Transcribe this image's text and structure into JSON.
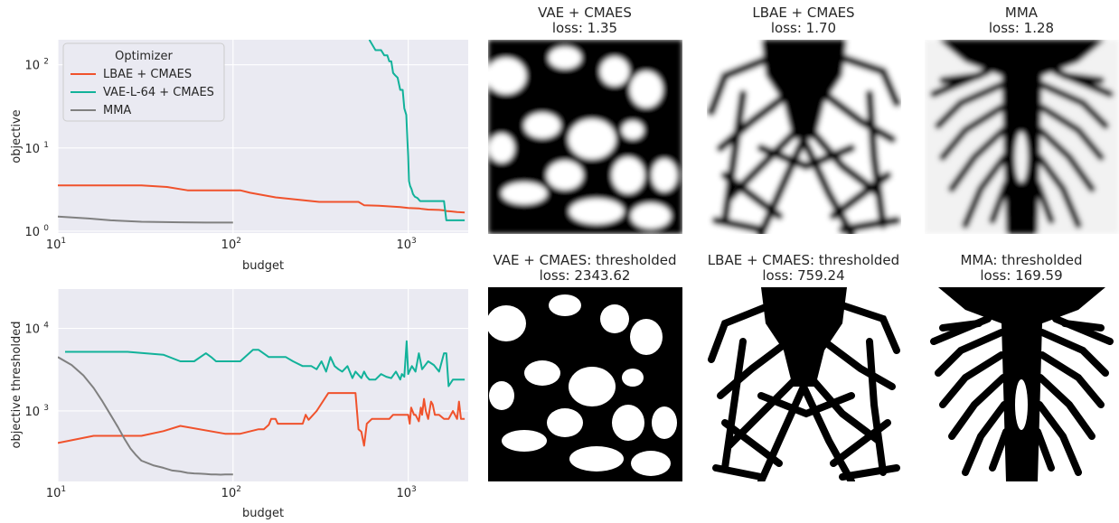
{
  "colors": {
    "lbae": "#f0522c",
    "vae": "#12b29a",
    "mma": "#808080",
    "plot_bg": "#eaeaf2"
  },
  "chart_data": [
    {
      "type": "line",
      "id": "top",
      "xscale": "log",
      "yscale": "log",
      "xlabel": "budget",
      "ylabel": "objective",
      "xlim": [
        10,
        2200
      ],
      "ylim": [
        0.95,
        200
      ],
      "grid": true,
      "x_ticks": [
        {
          "value": 10,
          "base": "10",
          "exp": "1"
        },
        {
          "value": 100,
          "base": "10",
          "exp": "2"
        },
        {
          "value": 1000,
          "base": "10",
          "exp": "3"
        }
      ],
      "y_ticks": [
        {
          "value": 1,
          "base": "10",
          "exp": "0"
        },
        {
          "value": 10,
          "base": "10",
          "exp": "1"
        },
        {
          "value": 100,
          "base": "10",
          "exp": "2"
        }
      ],
      "legend": {
        "title": "Optimizer",
        "placement": "upper-left",
        "entries": [
          {
            "label": "LBAE + CMAES",
            "color_key": "lbae"
          },
          {
            "label": "VAE-L-64 + CMAES",
            "color_key": "vae"
          },
          {
            "label": "MMA",
            "color_key": "mma"
          }
        ]
      },
      "series": [
        {
          "name": "LBAE + CMAES",
          "color_key": "lbae",
          "x": [
            10,
            30,
            42,
            55,
            110,
            125,
            175,
            310,
            520,
            560,
            680,
            900,
            1000,
            1150,
            1200,
            1300,
            1500,
            1600,
            1650,
            1750,
            1900,
            2100
          ],
          "y": [
            3.55,
            3.55,
            3.4,
            3.1,
            3.1,
            2.9,
            2.55,
            2.25,
            2.25,
            2.05,
            2.02,
            1.95,
            1.9,
            1.88,
            1.85,
            1.82,
            1.8,
            1.78,
            1.75,
            1.73,
            1.7,
            1.68
          ]
        },
        {
          "name": "VAE-L-64 + CMAES",
          "color_key": "vae",
          "x": [
            600,
            650,
            700,
            730,
            760,
            780,
            800,
            820,
            840,
            870,
            900,
            930,
            950,
            975,
            990,
            1000,
            1010,
            1025,
            1045,
            1065,
            1090,
            1130,
            1170,
            1300,
            1450,
            1600,
            1650,
            1800,
            2100
          ],
          "y": [
            200,
            150,
            150,
            130,
            130,
            110,
            110,
            80,
            75,
            70,
            50,
            50,
            30,
            25,
            12,
            8,
            4,
            3.5,
            3.2,
            2.8,
            2.6,
            2.5,
            2.3,
            2.3,
            2.3,
            2.3,
            1.35,
            1.35,
            1.35
          ]
        },
        {
          "name": "MMA",
          "color_key": "mma",
          "x": [
            10,
            15,
            20,
            30,
            50,
            70,
            100
          ],
          "y": [
            1.5,
            1.42,
            1.35,
            1.3,
            1.28,
            1.27,
            1.27
          ]
        }
      ]
    },
    {
      "type": "line",
      "id": "bottom",
      "xscale": "log",
      "yscale": "log",
      "xlabel": "budget",
      "ylabel": "objective thresholded",
      "xlim": [
        10,
        2200
      ],
      "ylim": [
        140,
        30000
      ],
      "grid": true,
      "x_ticks": [
        {
          "value": 10,
          "base": "10",
          "exp": "1"
        },
        {
          "value": 100,
          "base": "10",
          "exp": "2"
        },
        {
          "value": 1000,
          "base": "10",
          "exp": "3"
        }
      ],
      "y_ticks": [
        {
          "value": 1000,
          "base": "10",
          "exp": "3"
        },
        {
          "value": 10000,
          "base": "10",
          "exp": "4"
        }
      ],
      "series": [
        {
          "name": "LBAE + CMAES",
          "color_key": "lbae",
          "x": [
            10,
            16,
            30,
            40,
            50,
            90,
            110,
            140,
            150,
            160,
            165,
            175,
            180,
            250,
            260,
            270,
            300,
            350,
            400,
            450,
            500,
            520,
            540,
            560,
            580,
            620,
            700,
            780,
            820,
            840,
            860,
            900,
            960,
            1000,
            1020,
            1040,
            1080,
            1100,
            1150,
            1180,
            1200,
            1230,
            1260,
            1300,
            1350,
            1380,
            1420,
            1450,
            1500,
            1600,
            1700,
            1800,
            1900,
            1950,
            2000,
            2100
          ],
          "y": [
            410,
            500,
            500,
            570,
            660,
            530,
            530,
            600,
            600,
            680,
            800,
            800,
            700,
            700,
            900,
            780,
            1000,
            1650,
            1650,
            1650,
            1650,
            600,
            560,
            380,
            700,
            800,
            800,
            800,
            900,
            900,
            900,
            900,
            900,
            900,
            700,
            1100,
            900,
            900,
            750,
            1100,
            900,
            1400,
            1000,
            800,
            1300,
            1200,
            900,
            900,
            900,
            800,
            800,
            1000,
            800,
            1300,
            800,
            800
          ]
        },
        {
          "name": "VAE-L-64 + CMAES",
          "color_key": "vae",
          "x": [
            11,
            25,
            40,
            50,
            60,
            70,
            75,
            80,
            90,
            100,
            110,
            130,
            140,
            160,
            200,
            220,
            250,
            280,
            300,
            320,
            340,
            360,
            380,
            400,
            420,
            450,
            480,
            500,
            540,
            560,
            580,
            600,
            650,
            700,
            750,
            800,
            850,
            900,
            920,
            950,
            980,
            1000,
            1050,
            1100,
            1150,
            1200,
            1300,
            1400,
            1500,
            1600,
            1650,
            1700,
            1800,
            2100
          ],
          "y": [
            5200,
            5200,
            4800,
            4000,
            4000,
            5000,
            4500,
            4000,
            4000,
            4000,
            4000,
            5500,
            5500,
            4500,
            4500,
            4000,
            3500,
            3500,
            3200,
            4000,
            3000,
            4500,
            3500,
            3200,
            3000,
            3500,
            2500,
            3000,
            2500,
            3000,
            2600,
            2400,
            2400,
            2800,
            2600,
            2500,
            3000,
            2400,
            2800,
            2600,
            7000,
            2800,
            3500,
            3000,
            5000,
            3200,
            4000,
            3600,
            3000,
            5000,
            5000,
            2000,
            2400,
            2400
          ]
        },
        {
          "name": "MMA",
          "color_key": "mma",
          "x": [
            10,
            12,
            14,
            16,
            18,
            20,
            22,
            24,
            26,
            28,
            30,
            35,
            40,
            45,
            50,
            55,
            60,
            65,
            70,
            75,
            80,
            85,
            90,
            95,
            100
          ],
          "y": [
            4500,
            3600,
            2700,
            1900,
            1300,
            900,
            640,
            460,
            350,
            290,
            250,
            220,
            205,
            190,
            185,
            178,
            175,
            174,
            172,
            170,
            170,
            169,
            170,
            170,
            170
          ]
        }
      ]
    }
  ],
  "images": [
    {
      "title_line1": "VAE + CMAES",
      "title_line2": "loss: 1.35",
      "style": "soft",
      "pattern": "blobs"
    },
    {
      "title_line1": "LBAE + CMAES",
      "title_line2": "loss: 1.70",
      "style": "soft",
      "pattern": "web"
    },
    {
      "title_line1": "MMA",
      "title_line2": "loss: 1.28",
      "style": "soft",
      "pattern": "tree"
    },
    {
      "title_line1": "VAE + CMAES: thresholded",
      "title_line2": "loss: 2343.62",
      "style": "binary",
      "pattern": "blobs"
    },
    {
      "title_line1": "LBAE + CMAES: thresholded",
      "title_line2": "loss: 759.24",
      "style": "binary",
      "pattern": "web"
    },
    {
      "title_line1": "MMA: thresholded",
      "title_line2": "loss: 169.59",
      "style": "binary",
      "pattern": "tree"
    }
  ]
}
